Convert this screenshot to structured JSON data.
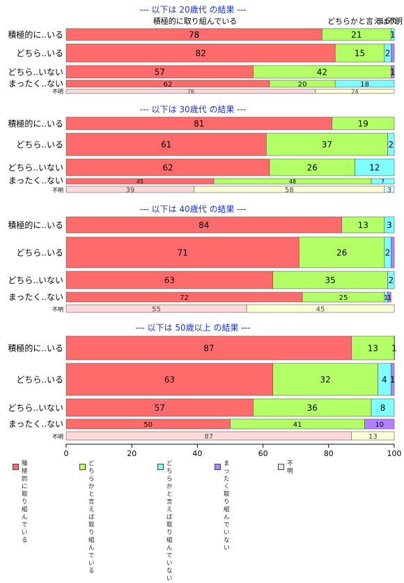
{
  "chart_data": {
    "type": "bar",
    "orientation": "horizontal",
    "stacked": true,
    "xlim": [
      0,
      100
    ],
    "x_ticks": [
      "0",
      "20",
      "40",
      "60",
      "80",
      "100"
    ],
    "top_header_labels": [
      "積極的に取り組んでいる",
      "どちらかと言えば",
      "まった",
      "不明"
    ],
    "legend_position": "bottom",
    "legend": [
      {
        "label": "積極的に\n取り組んでいる",
        "color": "#ff6b6b"
      },
      {
        "label": "どちらかと言えば\n取り組んでいる",
        "color": "#b3ff66"
      },
      {
        "label": "どちらかと言えば\n取り組んでいない",
        "color": "#80ffff"
      },
      {
        "label": "まったく\n取り組んでいない",
        "color": "#b380ff"
      },
      {
        "label": "不明",
        "color": "#e6e6e6"
      }
    ],
    "panels": [
      {
        "title": "--- 以下は 20歳代 の結果 ---",
        "rows": [
          {
            "label": "積極的に..いる",
            "values": [
              78,
              21,
              1,
              0
            ],
            "labels": [
              "78",
              "21",
              "1",
              ""
            ]
          },
          {
            "label": "どちら..いる",
            "values": [
              82,
              15,
              2,
              1
            ],
            "labels": [
              "82",
              "15",
              "2",
              ""
            ]
          },
          {
            "label": "どちら..いない",
            "values": [
              57,
              42,
              0,
              1
            ],
            "labels": [
              "57",
              "42",
              "",
              "1"
            ]
          },
          {
            "label": "まったく..ない",
            "values": [
              62,
              20,
              18,
              0
            ],
            "labels": [
              "62",
              "20",
              "18",
              ""
            ]
          },
          {
            "label": "不明",
            "values": [
              76,
              24,
              0,
              0
            ],
            "labels": [
              "76",
              "24",
              "",
              ""
            ]
          }
        ]
      },
      {
        "title": "--- 以下は 30歳代 の結果 ---",
        "rows": [
          {
            "label": "積極的に..いる",
            "values": [
              81,
              19,
              0,
              0
            ],
            "labels": [
              "81",
              "19",
              "",
              ""
            ]
          },
          {
            "label": "どちら..いる",
            "values": [
              61,
              37,
              2,
              0
            ],
            "labels": [
              "61",
              "37",
              "2",
              ""
            ]
          },
          {
            "label": "どちら..いない",
            "values": [
              62,
              26,
              12,
              0
            ],
            "labels": [
              "62",
              "26",
              "12",
              ""
            ]
          },
          {
            "label": "まったく..ない",
            "values": [
              45,
              48,
              7,
              0
            ],
            "labels": [
              "45",
              "48",
              "7",
              ""
            ]
          },
          {
            "label": "不明",
            "values": [
              39,
              58,
              3,
              0
            ],
            "labels": [
              "39",
              "58",
              "3",
              ""
            ]
          }
        ]
      },
      {
        "title": "--- 以下は 40歳代 の結果 ---",
        "rows": [
          {
            "label": "積極的に..いる",
            "values": [
              84,
              13,
              3,
              0
            ],
            "labels": [
              "84",
              "13",
              "3",
              ""
            ]
          },
          {
            "label": "どちら..いる",
            "values": [
              71,
              26,
              2,
              1
            ],
            "labels": [
              "71",
              "26",
              "2",
              ""
            ]
          },
          {
            "label": "どちら..いない",
            "values": [
              63,
              35,
              2,
              0
            ],
            "labels": [
              "63",
              "35",
              "2",
              ""
            ]
          },
          {
            "label": "まったく..ない",
            "values": [
              72,
              25,
              1,
              1
            ],
            "labels": [
              "72",
              "25",
              "1",
              "1"
            ]
          },
          {
            "label": "不明",
            "values": [
              55,
              45,
              0,
              0
            ],
            "labels": [
              "55",
              "45",
              "",
              ""
            ]
          }
        ]
      },
      {
        "title": "--- 以下は 50歳以上 の結果 ---",
        "rows": [
          {
            "label": "積極的に..いる",
            "values": [
              87,
              13,
              1,
              0
            ],
            "labels": [
              "87",
              "13",
              "1",
              ""
            ]
          },
          {
            "label": "どちら..いる",
            "values": [
              63,
              32,
              4,
              1
            ],
            "labels": [
              "63",
              "32",
              "4",
              "1"
            ]
          },
          {
            "label": "どちら..いない",
            "values": [
              57,
              36,
              8,
              0
            ],
            "labels": [
              "57",
              "36",
              "8",
              ""
            ]
          },
          {
            "label": "まったく..ない",
            "values": [
              50,
              41,
              0,
              10
            ],
            "labels": [
              "50",
              "41",
              "",
              "10"
            ]
          },
          {
            "label": "不明",
            "values": [
              87,
              13,
              0,
              0
            ],
            "labels": [
              "87",
              "13",
              "",
              ""
            ]
          }
        ]
      }
    ]
  }
}
